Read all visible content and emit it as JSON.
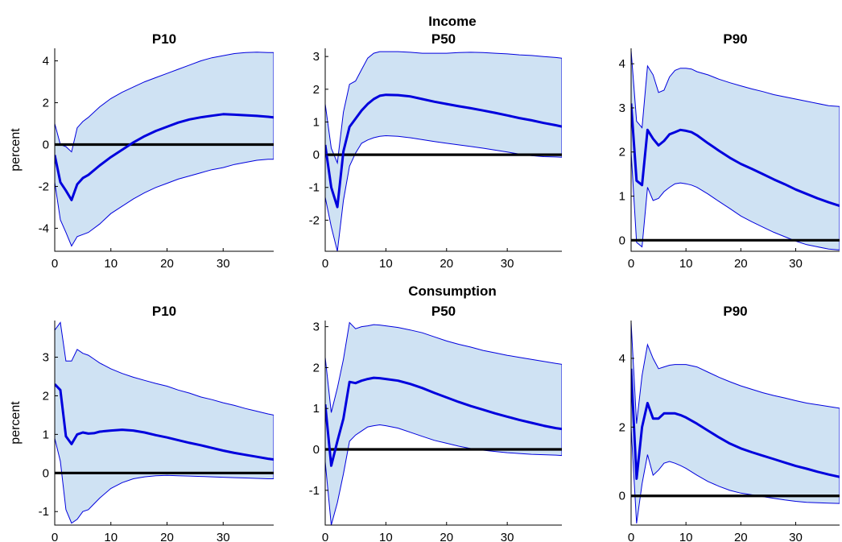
{
  "groups": [
    {
      "title": "Income"
    },
    {
      "title": "Consumption"
    }
  ],
  "chart_data": [
    {
      "type": "area",
      "group": "Income",
      "title": "P10",
      "ylabel": "percent",
      "xlim": [
        0,
        39
      ],
      "ylim": [
        -5.1,
        4.6
      ],
      "xticks": [
        0,
        10,
        20,
        30
      ],
      "yticks": [
        -4,
        -2,
        0,
        2,
        4
      ],
      "x": [
        0,
        1,
        2,
        3,
        4,
        5,
        6,
        8,
        10,
        12,
        14,
        16,
        18,
        20,
        22,
        24,
        26,
        28,
        30,
        32,
        34,
        36,
        38,
        39
      ],
      "median": [
        -0.5,
        -1.8,
        -2.2,
        -2.65,
        -1.9,
        -1.6,
        -1.45,
        -1.0,
        -0.6,
        -0.25,
        0.1,
        0.4,
        0.65,
        0.85,
        1.05,
        1.2,
        1.3,
        1.38,
        1.45,
        1.43,
        1.4,
        1.37,
        1.33,
        1.3
      ],
      "lower": [
        -1.8,
        -3.6,
        -4.2,
        -4.85,
        -4.4,
        -4.3,
        -4.2,
        -3.8,
        -3.3,
        -2.95,
        -2.6,
        -2.3,
        -2.05,
        -1.85,
        -1.65,
        -1.5,
        -1.35,
        -1.2,
        -1.1,
        -0.95,
        -0.85,
        -0.75,
        -0.7,
        -0.7
      ],
      "upper": [
        1.0,
        0.0,
        -0.1,
        -0.35,
        0.8,
        1.1,
        1.3,
        1.8,
        2.2,
        2.5,
        2.75,
        3.0,
        3.2,
        3.4,
        3.6,
        3.8,
        4.0,
        4.15,
        4.25,
        4.35,
        4.4,
        4.42,
        4.4,
        4.4
      ]
    },
    {
      "type": "area",
      "group": "Income",
      "title": "P50",
      "ylabel": "",
      "xlim": [
        0,
        39
      ],
      "ylim": [
        -2.95,
        3.25
      ],
      "xticks": [
        0,
        10,
        20,
        30
      ],
      "yticks": [
        -2,
        -1,
        0,
        1,
        2,
        3
      ],
      "x": [
        0,
        1,
        2,
        3,
        4,
        5,
        6,
        7,
        8,
        9,
        10,
        12,
        14,
        16,
        18,
        20,
        22,
        24,
        26,
        28,
        30,
        32,
        34,
        36,
        38,
        39
      ],
      "median": [
        0.3,
        -1.0,
        -1.6,
        0.1,
        0.85,
        1.1,
        1.35,
        1.55,
        1.7,
        1.8,
        1.83,
        1.82,
        1.78,
        1.7,
        1.62,
        1.55,
        1.48,
        1.42,
        1.35,
        1.28,
        1.2,
        1.12,
        1.05,
        0.97,
        0.9,
        0.86
      ],
      "lower": [
        -1.3,
        -2.2,
        -2.95,
        -1.4,
        -0.35,
        0.05,
        0.35,
        0.45,
        0.52,
        0.56,
        0.58,
        0.56,
        0.52,
        0.46,
        0.4,
        0.35,
        0.3,
        0.25,
        0.2,
        0.14,
        0.08,
        0.02,
        -0.03,
        -0.06,
        -0.07,
        -0.08
      ],
      "upper": [
        1.55,
        0.2,
        -0.25,
        1.3,
        2.15,
        2.25,
        2.6,
        2.95,
        3.1,
        3.15,
        3.15,
        3.15,
        3.13,
        3.1,
        3.1,
        3.1,
        3.12,
        3.13,
        3.12,
        3.1,
        3.08,
        3.05,
        3.03,
        3.0,
        2.97,
        2.95
      ]
    },
    {
      "type": "area",
      "group": "Income",
      "title": "P90",
      "ylabel": "",
      "xlim": [
        0,
        38
      ],
      "ylim": [
        -0.25,
        4.35
      ],
      "xticks": [
        0,
        10,
        20,
        30
      ],
      "yticks": [
        0,
        1,
        2,
        3,
        4
      ],
      "x": [
        0,
        1,
        2,
        3,
        4,
        5,
        6,
        7,
        8,
        9,
        10,
        11,
        12,
        14,
        16,
        18,
        20,
        22,
        24,
        26,
        28,
        30,
        32,
        34,
        36,
        38
      ],
      "median": [
        3.1,
        1.35,
        1.25,
        2.5,
        2.3,
        2.15,
        2.25,
        2.4,
        2.45,
        2.5,
        2.48,
        2.45,
        2.38,
        2.2,
        2.03,
        1.87,
        1.73,
        1.62,
        1.5,
        1.38,
        1.27,
        1.15,
        1.05,
        0.95,
        0.86,
        0.78
      ],
      "lower": [
        2.0,
        -0.05,
        -0.15,
        1.2,
        0.9,
        0.95,
        1.1,
        1.2,
        1.28,
        1.3,
        1.28,
        1.25,
        1.2,
        1.05,
        0.88,
        0.72,
        0.55,
        0.42,
        0.3,
        0.18,
        0.08,
        -0.02,
        -0.1,
        -0.15,
        -0.2,
        -0.22
      ],
      "upper": [
        4.3,
        2.7,
        2.55,
        3.95,
        3.75,
        3.35,
        3.4,
        3.7,
        3.85,
        3.9,
        3.9,
        3.88,
        3.82,
        3.75,
        3.65,
        3.57,
        3.5,
        3.43,
        3.37,
        3.3,
        3.25,
        3.2,
        3.15,
        3.1,
        3.05,
        3.03
      ]
    },
    {
      "type": "area",
      "group": "Consumption",
      "title": "P10",
      "ylabel": "percent",
      "xlim": [
        0,
        39
      ],
      "ylim": [
        -1.35,
        3.95
      ],
      "xticks": [
        0,
        10,
        20,
        30
      ],
      "yticks": [
        -1,
        0,
        1,
        2,
        3
      ],
      "x": [
        0,
        1,
        2,
        3,
        4,
        5,
        6,
        7,
        8,
        10,
        12,
        14,
        16,
        18,
        20,
        22,
        24,
        26,
        28,
        30,
        32,
        34,
        36,
        38,
        39
      ],
      "median": [
        2.3,
        2.15,
        0.95,
        0.75,
        1.0,
        1.05,
        1.02,
        1.03,
        1.07,
        1.1,
        1.12,
        1.1,
        1.05,
        0.98,
        0.92,
        0.85,
        0.78,
        0.72,
        0.65,
        0.58,
        0.52,
        0.47,
        0.42,
        0.37,
        0.35
      ],
      "lower": [
        0.9,
        0.3,
        -0.95,
        -1.3,
        -1.2,
        -1.0,
        -0.95,
        -0.8,
        -0.65,
        -0.4,
        -0.25,
        -0.15,
        -0.1,
        -0.07,
        -0.06,
        -0.07,
        -0.08,
        -0.09,
        -0.1,
        -0.11,
        -0.12,
        -0.13,
        -0.14,
        -0.15,
        -0.15
      ],
      "upper": [
        3.7,
        3.9,
        2.9,
        2.9,
        3.2,
        3.1,
        3.05,
        2.95,
        2.85,
        2.7,
        2.58,
        2.48,
        2.4,
        2.32,
        2.25,
        2.15,
        2.07,
        1.97,
        1.9,
        1.82,
        1.75,
        1.67,
        1.6,
        1.53,
        1.5
      ]
    },
    {
      "type": "area",
      "group": "Consumption",
      "title": "P50",
      "ylabel": "",
      "xlim": [
        0,
        39
      ],
      "ylim": [
        -1.85,
        3.15
      ],
      "xticks": [
        0,
        10,
        20,
        30
      ],
      "yticks": [
        -1,
        0,
        1,
        2,
        3
      ],
      "x": [
        0,
        1,
        2,
        3,
        4,
        5,
        6,
        7,
        8,
        9,
        10,
        12,
        14,
        16,
        18,
        20,
        22,
        24,
        26,
        28,
        30,
        32,
        34,
        36,
        38,
        39
      ],
      "median": [
        1.1,
        -0.4,
        0.2,
        0.75,
        1.65,
        1.62,
        1.68,
        1.72,
        1.75,
        1.74,
        1.72,
        1.68,
        1.6,
        1.5,
        1.38,
        1.27,
        1.16,
        1.06,
        0.97,
        0.88,
        0.8,
        0.72,
        0.65,
        0.58,
        0.52,
        0.5
      ],
      "lower": [
        -0.3,
        -1.85,
        -1.3,
        -0.6,
        0.2,
        0.35,
        0.45,
        0.55,
        0.58,
        0.6,
        0.58,
        0.52,
        0.42,
        0.32,
        0.22,
        0.15,
        0.08,
        0.02,
        -0.02,
        -0.05,
        -0.08,
        -0.1,
        -0.12,
        -0.13,
        -0.14,
        -0.15
      ],
      "upper": [
        2.25,
        0.9,
        1.5,
        2.2,
        3.1,
        2.95,
        3.0,
        3.02,
        3.05,
        3.04,
        3.02,
        2.98,
        2.92,
        2.85,
        2.75,
        2.65,
        2.57,
        2.5,
        2.42,
        2.36,
        2.3,
        2.25,
        2.2,
        2.15,
        2.1,
        2.08
      ]
    },
    {
      "type": "area",
      "group": "Consumption",
      "title": "P90",
      "ylabel": "",
      "xlim": [
        0,
        38
      ],
      "ylim": [
        -0.85,
        5.1
      ],
      "xticks": [
        0,
        10,
        20,
        30
      ],
      "yticks": [
        0,
        2,
        4
      ],
      "x": [
        0,
        1,
        2,
        3,
        4,
        5,
        6,
        7,
        8,
        9,
        10,
        12,
        14,
        16,
        18,
        20,
        22,
        24,
        26,
        28,
        30,
        32,
        34,
        36,
        38
      ],
      "median": [
        3.7,
        0.5,
        2.0,
        2.7,
        2.25,
        2.25,
        2.4,
        2.4,
        2.4,
        2.35,
        2.28,
        2.1,
        1.9,
        1.7,
        1.52,
        1.38,
        1.27,
        1.17,
        1.07,
        0.97,
        0.87,
        0.79,
        0.7,
        0.62,
        0.55
      ],
      "lower": [
        2.0,
        -0.8,
        0.35,
        1.2,
        0.6,
        0.75,
        0.95,
        1.0,
        0.95,
        0.88,
        0.8,
        0.6,
        0.42,
        0.28,
        0.16,
        0.08,
        0.03,
        -0.02,
        -0.07,
        -0.12,
        -0.16,
        -0.19,
        -0.2,
        -0.21,
        -0.22
      ],
      "upper": [
        5.05,
        2.1,
        3.5,
        4.4,
        4.0,
        3.7,
        3.75,
        3.8,
        3.82,
        3.82,
        3.82,
        3.75,
        3.6,
        3.45,
        3.32,
        3.2,
        3.1,
        3.0,
        2.92,
        2.85,
        2.77,
        2.7,
        2.65,
        2.6,
        2.55
      ]
    }
  ]
}
